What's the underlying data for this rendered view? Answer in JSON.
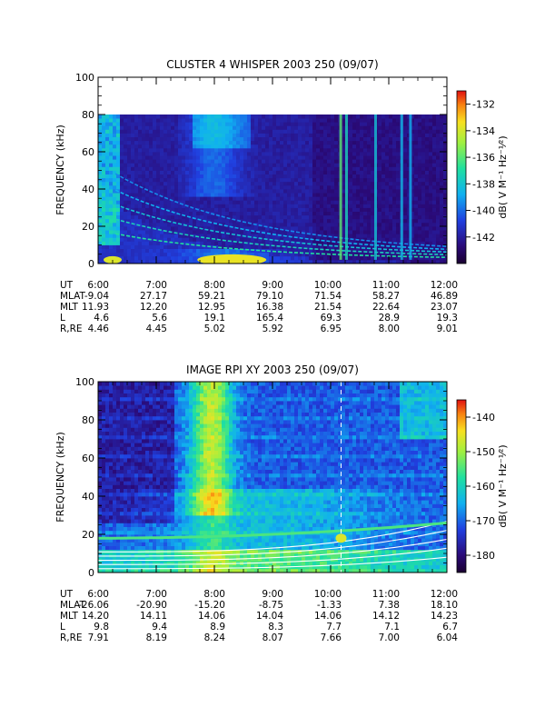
{
  "chart_data": [
    {
      "type": "heatmap",
      "title": "CLUSTER 4 WHISPER 2003 250 (09/07)",
      "ylabel": "FREQUENCY (kHz)",
      "ylim": [
        0,
        100
      ],
      "yticks": [
        "0",
        "20",
        "40",
        "60",
        "80",
        "100"
      ],
      "xlim": [
        "6:00",
        "12:00"
      ],
      "xticks": [
        "6:00",
        "7:00",
        "8:00",
        "9:00",
        "10:00",
        "11:00",
        "12:00"
      ],
      "data_top_khz": 80,
      "colorbar": {
        "label": "dB( V M⁻¹ Hz⁻¹⁄²)",
        "ticks": [
          "-132",
          "-134",
          "-136",
          "-138",
          "-140",
          "-142"
        ],
        "range": [
          -144,
          -131
        ]
      },
      "ephemeris": [
        {
          "name": "UT",
          "values": [
            "6:00",
            "7:00",
            "8:00",
            "9:00",
            "10:00",
            "11:00",
            "12:00"
          ]
        },
        {
          "name": "MLAT",
          "values": [
            "-9.04",
            "27.17",
            "59.21",
            "79.10",
            "71.54",
            "58.27",
            "46.89"
          ]
        },
        {
          "name": "MLT",
          "values": [
            "11.93",
            "12.20",
            "12.95",
            "16.38",
            "21.54",
            "22.64",
            "23.07"
          ]
        },
        {
          "name": "L",
          "values": [
            "4.6",
            "5.6",
            "19.1",
            "165.4",
            "69.3",
            "28.9",
            "19.3"
          ]
        },
        {
          "name": "R,RE",
          "values": [
            "4.46",
            "4.45",
            "5.02",
            "5.92",
            "6.95",
            "8.00",
            "9.01"
          ]
        }
      ]
    },
    {
      "type": "heatmap",
      "title": "IMAGE RPI XY 2003 250 (09/07)",
      "ylabel": "FREQUENCY (kHz)",
      "ylim": [
        0,
        100
      ],
      "yticks": [
        "0",
        "20",
        "40",
        "60",
        "80",
        "100"
      ],
      "xlim": [
        "6:00",
        "12:00"
      ],
      "xticks": [
        "6:00",
        "7:00",
        "8:00",
        "9:00",
        "10:00",
        "11:00",
        "12:00"
      ],
      "colorbar": {
        "label": "dB( V M⁻¹ Hz⁻¹⁄²)",
        "ticks": [
          "-140",
          "-150",
          "-160",
          "-170",
          "-180"
        ],
        "range": [
          -185,
          -135
        ]
      },
      "ephemeris": [
        {
          "name": "UT",
          "values": [
            "6:00",
            "7:00",
            "8:00",
            "9:00",
            "10:00",
            "11:00",
            "12:00"
          ]
        },
        {
          "name": "MLAT",
          "values": [
            "-26.06",
            "-20.90",
            "-15.20",
            "-8.75",
            "-1.33",
            "7.38",
            "18.10"
          ]
        },
        {
          "name": "MLT",
          "values": [
            "14.20",
            "14.11",
            "14.06",
            "14.04",
            "14.06",
            "14.12",
            "14.23"
          ]
        },
        {
          "name": "L",
          "values": [
            "9.8",
            "9.4",
            "8.9",
            "8.3",
            "7.7",
            "7.1",
            "6.7"
          ]
        },
        {
          "name": "R,RE",
          "values": [
            "7.91",
            "8.19",
            "8.24",
            "8.07",
            "7.66",
            "7.00",
            "6.04"
          ]
        }
      ]
    }
  ]
}
